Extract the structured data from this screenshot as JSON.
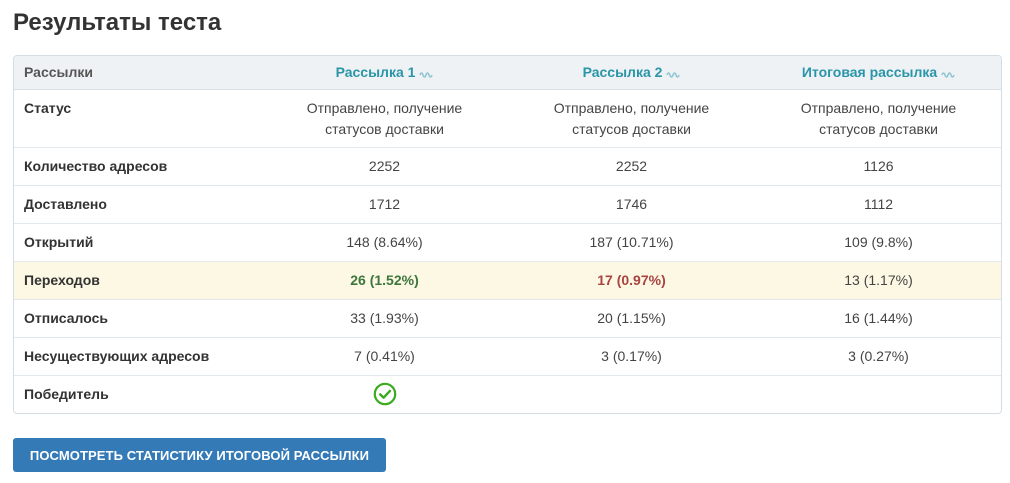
{
  "page": {
    "title": "Результаты теста"
  },
  "table": {
    "header": {
      "label": "Рассылки",
      "mailings": [
        {
          "label": "Рассылка 1",
          "icon": "wave-icon"
        },
        {
          "label": "Рассылка 2",
          "icon": "wave-icon"
        },
        {
          "label": "Итоговая рассылка",
          "icon": "wave-icon"
        }
      ]
    },
    "rows": {
      "status": {
        "label": "Статус",
        "values": [
          {
            "line1": "Отправлено, получение",
            "line2": "статусов доставки"
          },
          {
            "line1": "Отправлено, получение",
            "line2": "статусов доставки"
          },
          {
            "line1": "Отправлено, получение",
            "line2": "статусов доставки"
          }
        ]
      },
      "addresses": {
        "label": "Количество адресов",
        "values": [
          "2252",
          "2252",
          "1126"
        ]
      },
      "delivered": {
        "label": "Доставлено",
        "values": [
          "1712",
          "1746",
          "1112"
        ]
      },
      "opens": {
        "label": "Открытий",
        "values": [
          "148 (8.64%)",
          "187 (10.71%)",
          "109 (9.8%)"
        ]
      },
      "clicks": {
        "label": "Переходов",
        "values": [
          "26 (1.52%)",
          "17 (0.97%)",
          "13 (1.17%)"
        ]
      },
      "unsubscribed": {
        "label": "Отписалось",
        "values": [
          "33 (1.93%)",
          "20 (1.15%)",
          "16 (1.44%)"
        ]
      },
      "nonexistent": {
        "label": "Несуществующих адресов",
        "values": [
          "7 (0.41%)",
          "3 (0.17%)",
          "3 (0.27%)"
        ]
      },
      "winner": {
        "label": "Победитель",
        "icon": "check-circle-icon"
      }
    }
  },
  "colors": {
    "header_link": "#2a95a8",
    "best_value": "#3c763d",
    "worst_value": "#a94442",
    "highlight_row": "#fcf8e3",
    "winner_icon": "#3aaa1e",
    "button": "#337ab7"
  },
  "actions": {
    "view_final_stats": "ПОСМОТРЕТЬ СТАТИСТИКУ ИТОГОВОЙ РАССЫЛКИ"
  }
}
